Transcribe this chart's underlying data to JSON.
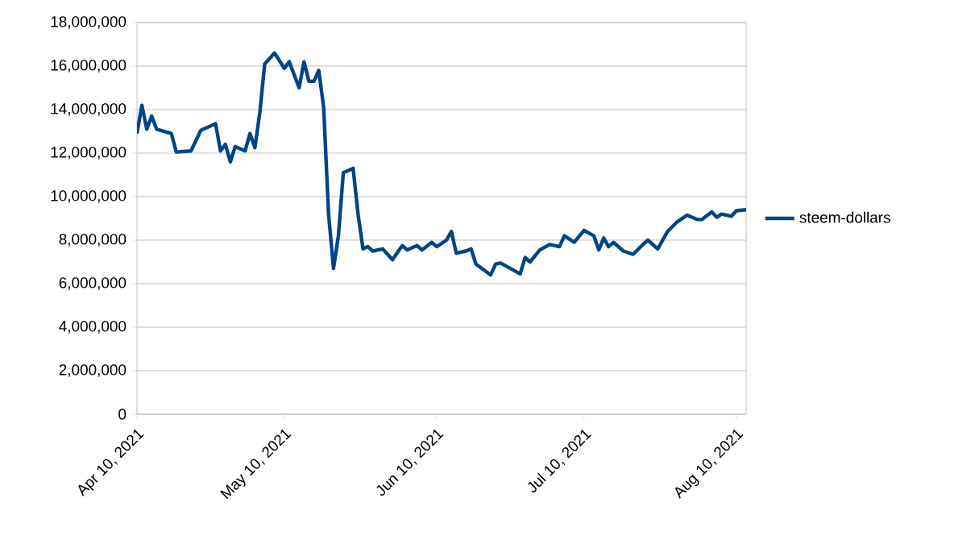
{
  "chart_data": {
    "type": "line",
    "x": [
      "2021-04-10",
      "2021-04-11",
      "2021-04-12",
      "2021-04-13",
      "2021-04-14",
      "2021-04-17",
      "2021-04-18",
      "2021-04-21",
      "2021-04-23",
      "2021-04-26",
      "2021-04-27",
      "2021-04-28",
      "2021-04-29",
      "2021-04-30",
      "2021-05-02",
      "2021-05-03",
      "2021-05-04",
      "2021-05-05",
      "2021-05-06",
      "2021-05-08",
      "2021-05-10",
      "2021-05-11",
      "2021-05-13",
      "2021-05-14",
      "2021-05-15",
      "2021-05-16",
      "2021-05-17",
      "2021-05-18",
      "2021-05-19",
      "2021-05-20",
      "2021-05-21",
      "2021-05-22",
      "2021-05-24",
      "2021-05-25",
      "2021-05-26",
      "2021-05-27",
      "2021-05-28",
      "2021-05-30",
      "2021-06-01",
      "2021-06-03",
      "2021-06-04",
      "2021-06-06",
      "2021-06-07",
      "2021-06-09",
      "2021-06-10",
      "2021-06-12",
      "2021-06-13",
      "2021-06-14",
      "2021-06-16",
      "2021-06-17",
      "2021-06-18",
      "2021-06-21",
      "2021-06-22",
      "2021-06-23",
      "2021-06-27",
      "2021-06-28",
      "2021-06-29",
      "2021-07-01",
      "2021-07-03",
      "2021-07-05",
      "2021-07-06",
      "2021-07-08",
      "2021-07-10",
      "2021-07-12",
      "2021-07-13",
      "2021-07-14",
      "2021-07-15",
      "2021-07-16",
      "2021-07-18",
      "2021-07-20",
      "2021-07-22",
      "2021-07-23",
      "2021-07-25",
      "2021-07-27",
      "2021-07-29",
      "2021-07-31",
      "2021-08-02",
      "2021-08-03",
      "2021-08-05",
      "2021-08-06",
      "2021-08-07",
      "2021-08-09",
      "2021-08-10",
      "2021-08-12"
    ],
    "series": [
      {
        "name": "steem-dollars",
        "color": "#004586",
        "values": [
          12900000,
          14200000,
          13100000,
          13700000,
          13100000,
          12900000,
          12050000,
          12100000,
          13050000,
          13350000,
          12100000,
          12400000,
          11600000,
          12300000,
          12100000,
          12900000,
          12250000,
          13850000,
          16100000,
          16600000,
          15900000,
          16200000,
          15000000,
          16200000,
          15300000,
          15300000,
          15800000,
          14100000,
          9200000,
          6700000,
          8200000,
          11100000,
          11300000,
          9200000,
          7600000,
          7700000,
          7500000,
          7600000,
          7100000,
          7750000,
          7550000,
          7750000,
          7550000,
          7900000,
          7700000,
          8000000,
          8400000,
          7400000,
          7500000,
          7600000,
          6900000,
          6400000,
          6900000,
          6950000,
          6450000,
          7200000,
          7000000,
          7550000,
          7800000,
          7700000,
          8200000,
          7900000,
          8450000,
          8200000,
          7550000,
          8100000,
          7700000,
          7900000,
          7500000,
          7350000,
          7800000,
          8000000,
          7600000,
          8400000,
          8850000,
          9150000,
          8950000,
          8950000,
          9300000,
          9050000,
          9200000,
          9100000,
          9350000,
          9400000
        ]
      }
    ],
    "xlim": [
      "2021-04-10",
      "2021-08-12"
    ],
    "xticks": [
      {
        "value": "2021-04-10",
        "label": "Apr 10, 2021"
      },
      {
        "value": "2021-05-10",
        "label": "May 10, 2021"
      },
      {
        "value": "2021-06-10",
        "label": "Jun 10, 2021"
      },
      {
        "value": "2021-07-10",
        "label": "Jul 10, 2021"
      },
      {
        "value": "2021-08-10",
        "label": "Aug 10, 2021"
      }
    ],
    "ylim": [
      0,
      18000000
    ],
    "yticks": [
      0,
      {
        "value": 2000000,
        "label": "2,000,000"
      },
      {
        "value": 4000000,
        "label": "4,000,000"
      },
      {
        "value": 6000000,
        "label": "6,000,000"
      },
      {
        "value": 8000000,
        "label": "8,000,000"
      },
      {
        "value": 10000000,
        "label": "10,000,000"
      },
      {
        "value": 12000000,
        "label": "12,000,000"
      },
      {
        "value": 14000000,
        "label": "14,000,000"
      },
      {
        "value": 16000000,
        "label": "16,000,000"
      },
      {
        "value": 18000000,
        "label": "18,000,000"
      }
    ],
    "grid": "y",
    "legend": "right",
    "marker": "none",
    "line_style": "solid"
  }
}
